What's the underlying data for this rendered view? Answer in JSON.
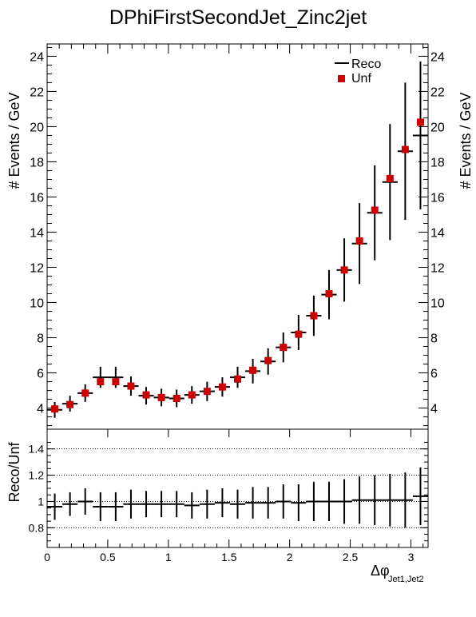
{
  "chart_data": [
    {
      "type": "scatter",
      "title": "DPhiFirstSecondJet_Zinc2jet",
      "ylabel": "# Events / GeV",
      "xlim": [
        0,
        3.14159
      ],
      "ylim": [
        2.8,
        24.7
      ],
      "yticks": [
        4,
        6,
        8,
        10,
        12,
        14,
        16,
        18,
        20,
        22,
        24
      ],
      "grid": false,
      "legend_position": "top-right",
      "legend": [
        {
          "name": "Reco",
          "style": "line",
          "color": "#000000"
        },
        {
          "name": "Unf",
          "style": "square",
          "color": "#cc0000"
        }
      ],
      "x_edges": [
        0,
        0.1257,
        0.2513,
        0.377,
        0.5027,
        0.6283,
        0.754,
        0.8796,
        1.0053,
        1.131,
        1.2566,
        1.3823,
        1.508,
        1.6336,
        1.7593,
        1.885,
        2.0106,
        2.1363,
        2.2619,
        2.3876,
        2.5133,
        2.6389,
        2.7646,
        2.8903,
        3.0159,
        3.1416
      ],
      "series": [
        {
          "name": "Reco",
          "color": "#000000",
          "values": [
            3.9,
            4.25,
            4.85,
            5.75,
            5.75,
            5.25,
            4.7,
            4.6,
            4.55,
            4.75,
            4.95,
            5.2,
            5.75,
            6.1,
            6.65,
            7.45,
            8.3,
            9.25,
            10.45,
            11.85,
            13.35,
            15.1,
            16.85,
            18.6,
            19.5
          ],
          "errors": [
            0.45,
            0.45,
            0.5,
            0.6,
            0.6,
            0.55,
            0.5,
            0.5,
            0.5,
            0.5,
            0.55,
            0.55,
            0.6,
            0.7,
            0.75,
            0.85,
            1.0,
            1.15,
            1.4,
            1.8,
            2.3,
            2.7,
            3.3,
            3.9,
            4.2
          ]
        },
        {
          "name": "Unf",
          "color": "#cc0000",
          "values": [
            3.95,
            4.2,
            4.85,
            5.5,
            5.5,
            5.25,
            4.75,
            4.6,
            4.55,
            4.75,
            4.95,
            5.2,
            5.65,
            6.15,
            6.7,
            7.45,
            8.2,
            9.25,
            10.5,
            11.85,
            13.5,
            15.25,
            17.05,
            18.7,
            20.25
          ]
        }
      ]
    },
    {
      "type": "scatter",
      "ylabel": "Reco/Unf",
      "xlabel": "Δφ",
      "xlabel_sub": "Jet1,Jet2",
      "xlim": [
        0,
        3.14159
      ],
      "ylim": [
        0.65,
        1.55
      ],
      "yticks": [
        0.8,
        1,
        1.2,
        1.4
      ],
      "ytick_labels": [
        "0.8",
        "1",
        "1.2",
        "1.4"
      ],
      "xticks": [
        0,
        0.5,
        1,
        1.5,
        2,
        2.5,
        3
      ],
      "xtick_labels": [
        "0",
        "0.5",
        "1",
        "1.5",
        "2",
        "2.5",
        "3"
      ],
      "reference_lines": [
        0.8,
        1.0,
        1.2,
        1.4
      ],
      "series": [
        {
          "name": "Reco/Unf",
          "color": "#000000",
          "values": [
            0.96,
            0.98,
            1.0,
            0.96,
            0.96,
            0.98,
            0.98,
            0.98,
            0.98,
            0.97,
            0.98,
            0.99,
            0.98,
            0.99,
            0.99,
            1.0,
            0.99,
            1.0,
            1.0,
            1.0,
            1.01,
            1.01,
            1.01,
            1.01,
            1.04
          ],
          "errors": [
            0.1,
            0.09,
            0.1,
            0.11,
            0.11,
            0.11,
            0.1,
            0.1,
            0.1,
            0.1,
            0.11,
            0.11,
            0.11,
            0.12,
            0.12,
            0.13,
            0.14,
            0.15,
            0.15,
            0.17,
            0.18,
            0.19,
            0.2,
            0.21,
            0.22
          ]
        }
      ]
    }
  ]
}
